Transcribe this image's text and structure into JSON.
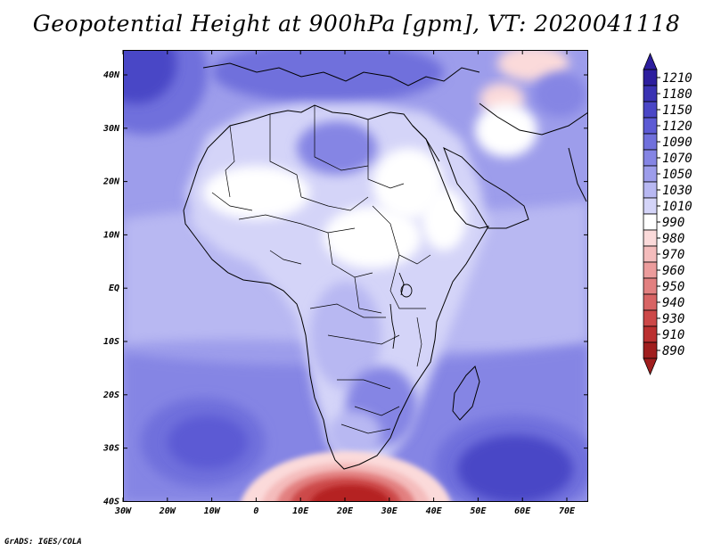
{
  "title": "Geopotential Height at 900hPa [gpm], VT: 2020041118",
  "credit": "GrADS: IGES/COLA",
  "map": {
    "lon_labels": [
      "30W",
      "20W",
      "10W",
      "0",
      "10E",
      "20E",
      "30E",
      "40E",
      "50E",
      "60E",
      "70E"
    ],
    "lat_labels": [
      "40N",
      "30N",
      "20N",
      "10N",
      "EQ",
      "10S",
      "20S",
      "30S",
      "40S"
    ]
  },
  "colorbar": {
    "labels": [
      "1210",
      "1180",
      "1150",
      "1120",
      "1090",
      "1070",
      "1050",
      "1030",
      "1010",
      "990",
      "980",
      "970",
      "960",
      "950",
      "940",
      "930",
      "910",
      "890"
    ],
    "colors": [
      "#2d1e9e",
      "#3a32b3",
      "#4a46c6",
      "#5c5ad4",
      "#7070dc",
      "#8585e4",
      "#9d9deb",
      "#b8b8f2",
      "#d4d4f8",
      "#ffffff",
      "#fbdada",
      "#f4bcbc",
      "#ec9c9c",
      "#e28080",
      "#d86464",
      "#cc4848",
      "#bb3030",
      "#a01e1e"
    ]
  },
  "legend_colors": {
    "ocean_base": "#9d9deb",
    "land_light": "#d4d4f8",
    "high_deep": "#4a46c6",
    "low_red": "#b52222"
  }
}
